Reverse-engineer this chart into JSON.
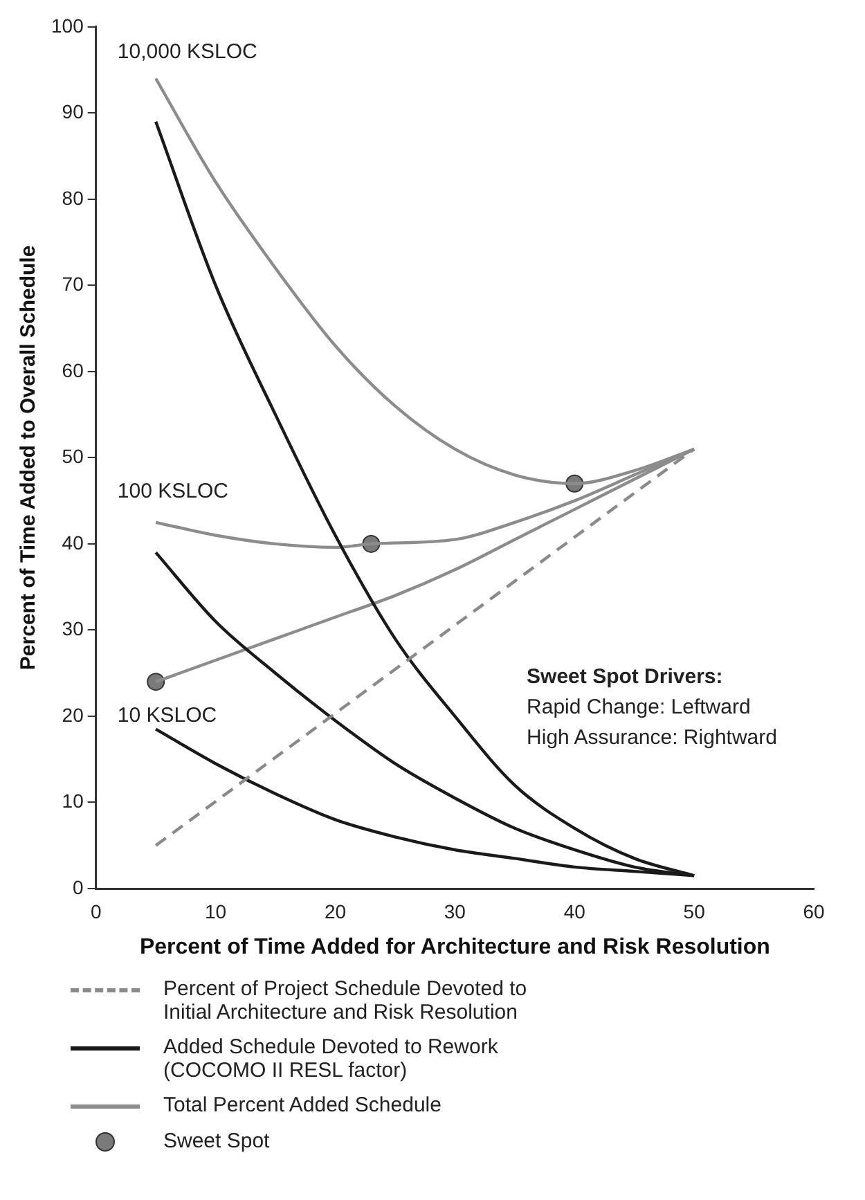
{
  "chart_data": {
    "type": "line",
    "xlabel": "Percent of Time Added for Architecture and Risk Resolution",
    "ylabel": "Percent of Time Added to Overall Schedule",
    "xlim": [
      0,
      60
    ],
    "xticks": [
      0,
      10,
      20,
      30,
      40,
      50,
      60
    ],
    "ylim": [
      0,
      100
    ],
    "yticks": [
      0,
      10,
      20,
      30,
      40,
      50,
      60,
      70,
      80,
      90,
      100
    ],
    "grid": false,
    "legend": "bottom",
    "marker": "none",
    "series": [
      {
        "name": "Percent of Project Schedule Devoted to Initial Architecture and Risk Resolution",
        "color": "#8a8a8a",
        "line_style": "dashed",
        "x": [
          5,
          50
        ],
        "values": [
          5,
          51
        ]
      },
      {
        "name": "Added Schedule Devoted to Rework (COCOMO II RESL factor)",
        "color": "#1a1a1a",
        "x": [
          5,
          10,
          15,
          20,
          25,
          30,
          35,
          40,
          45,
          50
        ],
        "values": [
          89,
          70,
          55,
          41,
          29,
          20,
          12,
          7,
          3.5,
          1.5
        ]
      },
      {
        "color": "#1a1a1a",
        "x": [
          5,
          10,
          15,
          20,
          25,
          30,
          35,
          40,
          45,
          50
        ],
        "values": [
          39,
          31,
          25,
          19.5,
          14.5,
          10.5,
          7,
          4.5,
          2.5,
          1.5
        ]
      },
      {
        "color": "#1a1a1a",
        "x": [
          5,
          10,
          15,
          20,
          25,
          30,
          35,
          40,
          45,
          50
        ],
        "values": [
          18.5,
          14.5,
          11,
          8,
          6,
          4.5,
          3.5,
          2.5,
          2,
          1.5
        ]
      },
      {
        "name": "Total Percent Added Schedule",
        "color": "#8c8c8c",
        "x": [
          5,
          10,
          15,
          20,
          25,
          30,
          35,
          40,
          45,
          50
        ],
        "values": [
          94,
          82,
          72,
          63,
          56,
          51,
          48,
          47,
          48.5,
          51
        ]
      },
      {
        "color": "#8c8c8c",
        "x": [
          5,
          10,
          15,
          20,
          23,
          30,
          35,
          40,
          45,
          50
        ],
        "values": [
          42.5,
          41,
          40,
          39.6,
          40,
          40.5,
          42.5,
          45,
          48,
          51
        ]
      },
      {
        "color": "#8c8c8c",
        "x": [
          5,
          10,
          15,
          20,
          25,
          30,
          35,
          40,
          45,
          50
        ],
        "values": [
          24,
          26.5,
          29,
          31.5,
          34,
          37,
          40.5,
          44,
          47.5,
          51
        ]
      },
      {
        "name": "Sweet Spot",
        "type": "scatter",
        "marker": "circle",
        "color": "#7a7a7a",
        "x": [
          40,
          23,
          5
        ],
        "values": [
          47,
          40,
          24
        ]
      }
    ],
    "annotations": [
      "10,000 KSLOC",
      "100 KSLOC",
      "10 KSLOC",
      "Sweet Spot Drivers:",
      "Rapid Change: Leftward",
      "High Assurance: Rightward"
    ]
  }
}
